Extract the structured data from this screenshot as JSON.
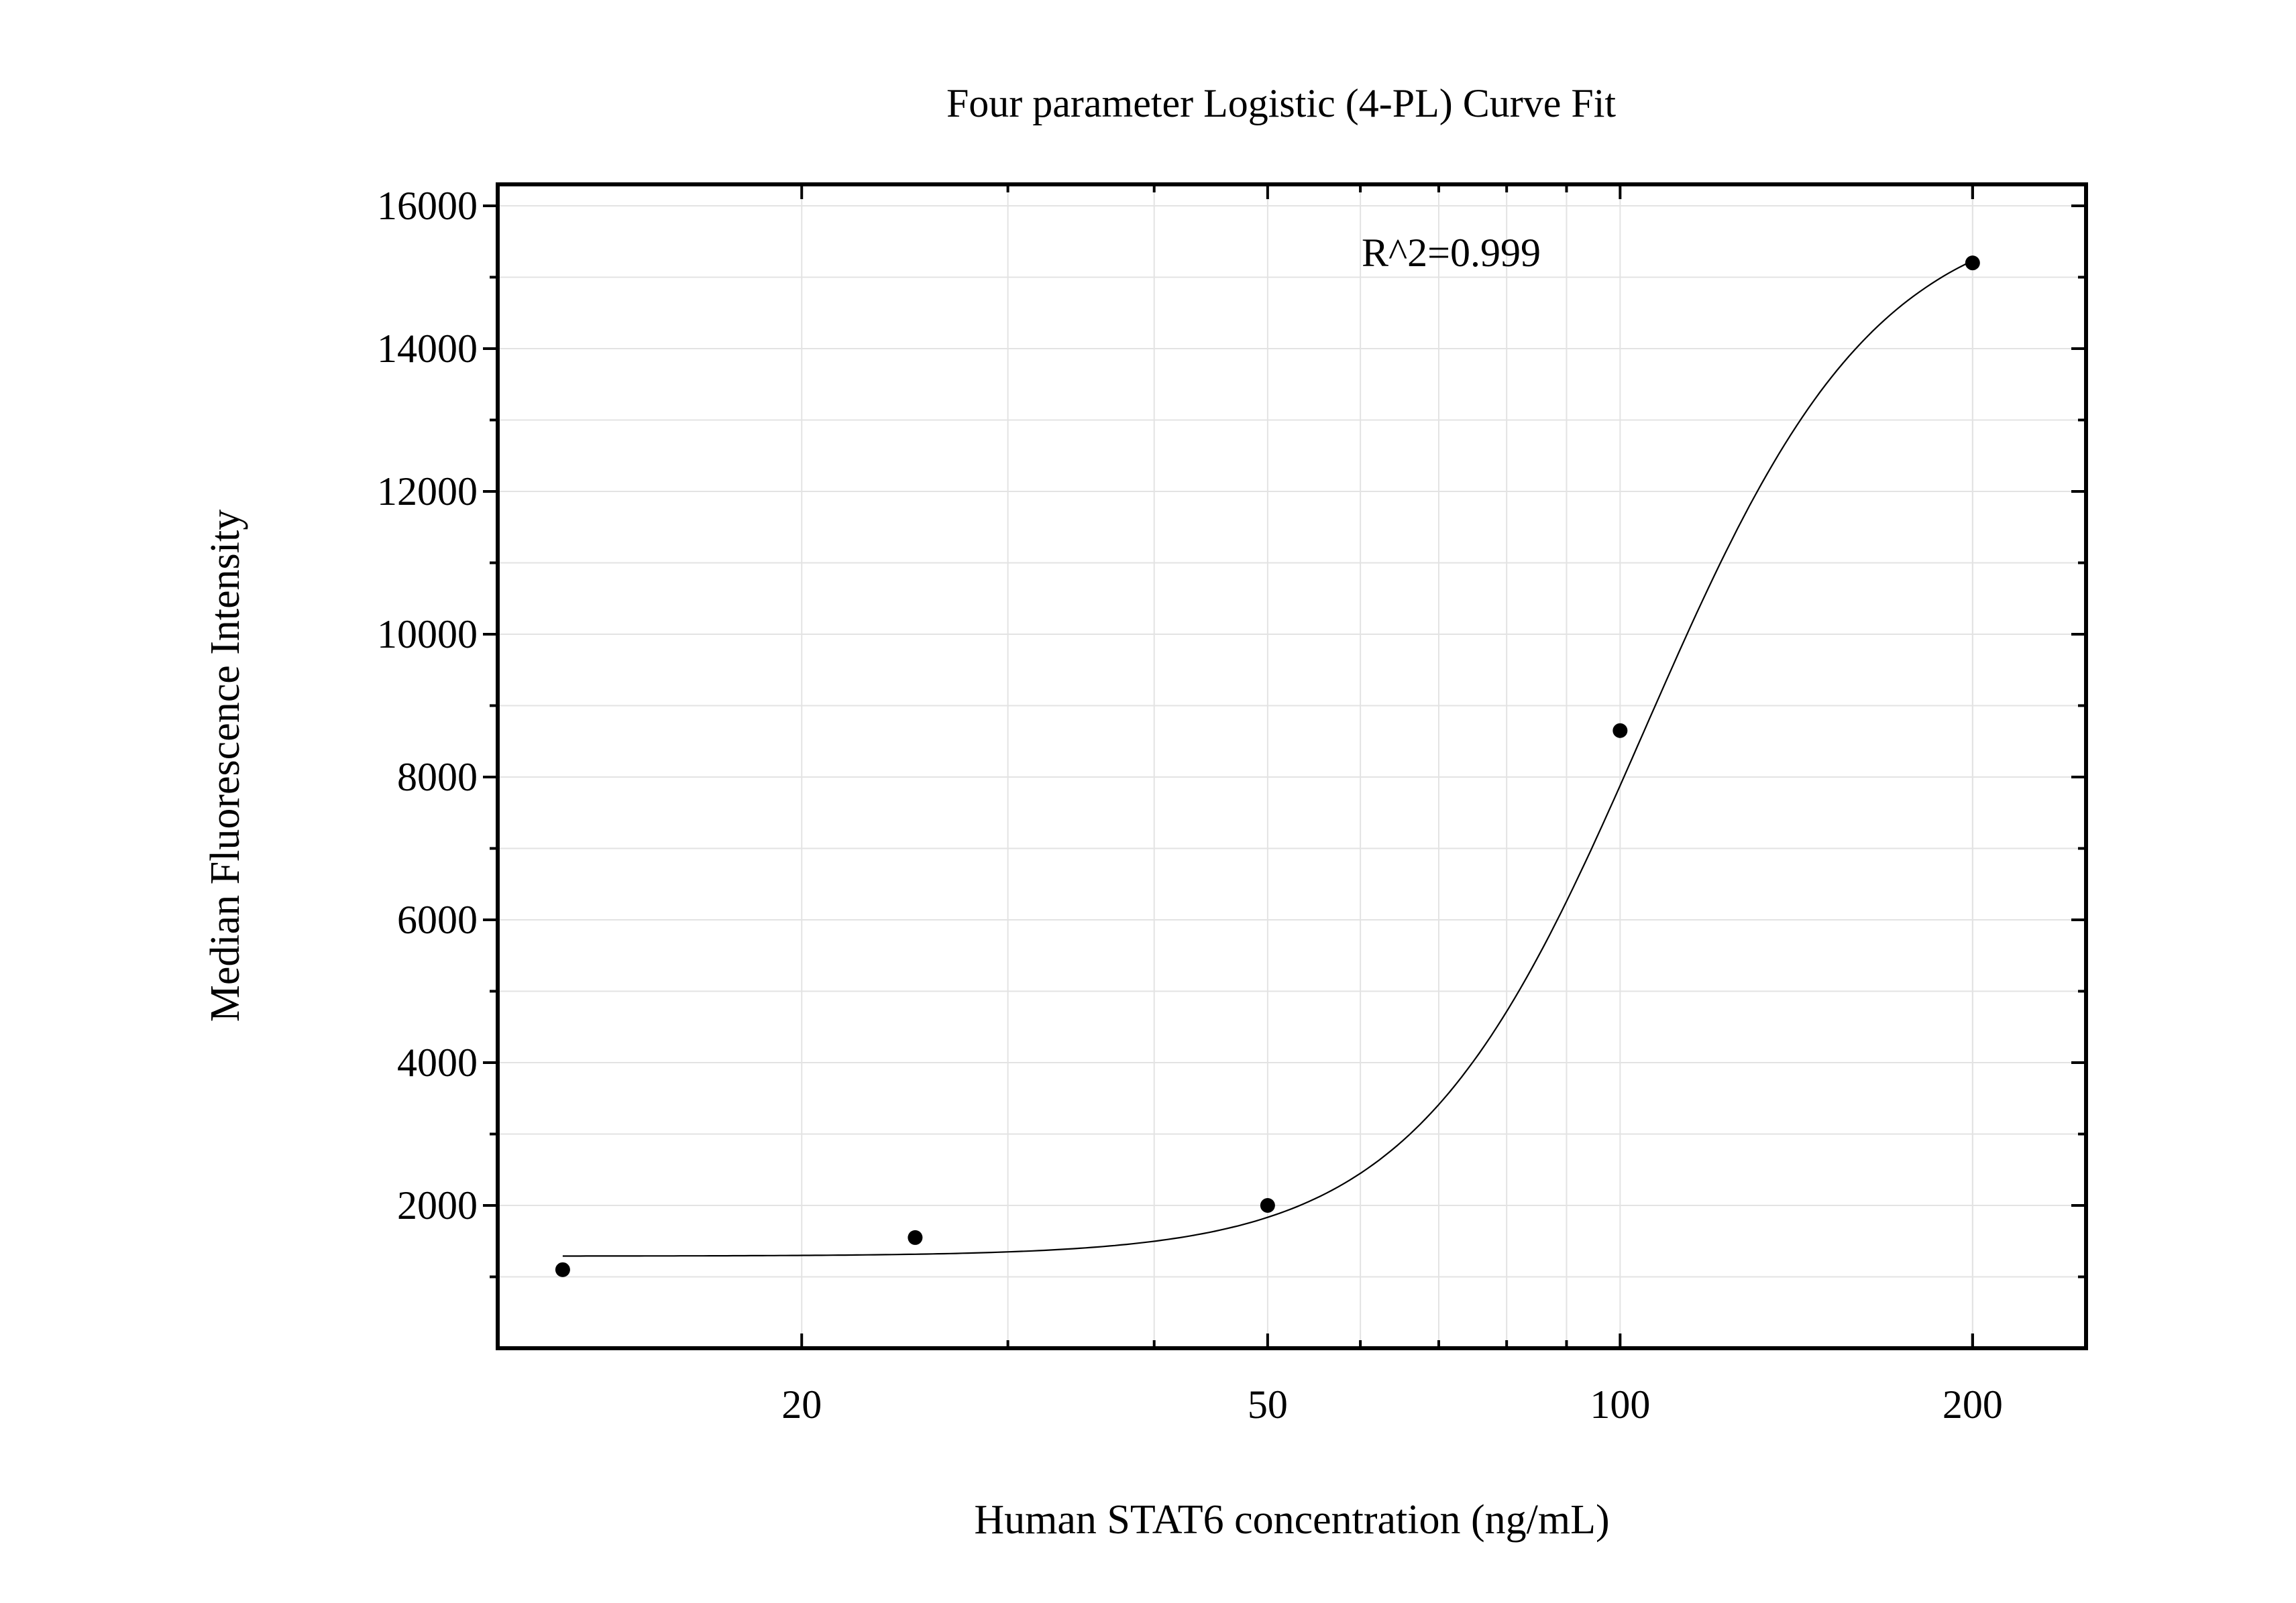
{
  "chart_data": {
    "type": "scatter",
    "title": "Four parameter Logistic (4-PL) Curve Fit",
    "xlabel": "Human STAT6 concentration (ng/mL)",
    "ylabel": "Median Fluorescence Intensity",
    "x_scale": "log",
    "xlim": [
      11,
      250
    ],
    "ylim": [
      0,
      16300
    ],
    "x_ticks": [
      20,
      50,
      100,
      200
    ],
    "x_tick_labels": [
      "20",
      "50",
      "100",
      "200"
    ],
    "y_ticks": [
      2000,
      4000,
      6000,
      8000,
      10000,
      12000,
      14000,
      16000
    ],
    "y_tick_labels": [
      "2000",
      "4000",
      "6000",
      "8000",
      "10000",
      "12000",
      "14000",
      "16000"
    ],
    "grid": true,
    "annotation": "R^2=0.999",
    "series": [
      {
        "points": [
          {
            "x": 12.5,
            "y": 1100
          },
          {
            "x": 25,
            "y": 1550
          },
          {
            "x": 50,
            "y": 2000
          },
          {
            "x": 100,
            "y": 8650
          },
          {
            "x": 200,
            "y": 15200
          }
        ]
      }
    ],
    "fit": {
      "model": "4PL",
      "x_range": [
        12.5,
        200
      ]
    }
  }
}
